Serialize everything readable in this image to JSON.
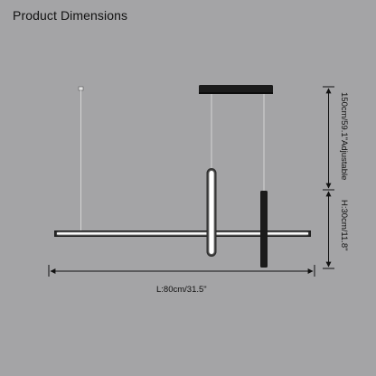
{
  "heading": "Product Dimensions",
  "dimensions": {
    "length": "L:80cm/31.5\"",
    "cable": "150cm/59.1\"Adjustable",
    "height": "H:30cm/11.8\""
  },
  "colors": {
    "background": "#a4a4a6",
    "fixture": "#1b1b1b",
    "light": "#ffffff",
    "line": "#111111"
  }
}
